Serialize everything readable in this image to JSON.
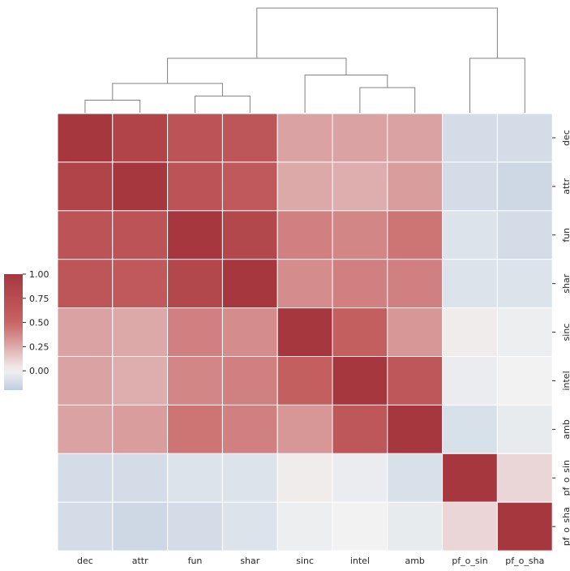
{
  "chart_data": {
    "type": "heatmap",
    "title": "",
    "xlabel": "",
    "ylabel": "",
    "labels": [
      "dec",
      "attr",
      "fun",
      "shar",
      "sinc",
      "intel",
      "amb",
      "pf_o_sin",
      "pf_o_sha"
    ],
    "matrix": [
      [
        1.0,
        0.86,
        0.68,
        0.66,
        0.28,
        0.28,
        0.28,
        -0.12,
        -0.12
      ],
      [
        0.86,
        1.0,
        0.68,
        0.62,
        0.26,
        0.24,
        0.3,
        -0.12,
        -0.14
      ],
      [
        0.68,
        0.68,
        1.0,
        0.82,
        0.4,
        0.38,
        0.44,
        -0.08,
        -0.12
      ],
      [
        0.66,
        0.62,
        0.82,
        1.0,
        0.36,
        0.4,
        0.4,
        -0.08,
        -0.08
      ],
      [
        0.28,
        0.26,
        0.4,
        0.36,
        1.0,
        0.56,
        0.32,
        0.02,
        -0.02
      ],
      [
        0.28,
        0.24,
        0.38,
        0.4,
        0.56,
        1.0,
        0.64,
        -0.03,
        0.0
      ],
      [
        0.28,
        0.3,
        0.44,
        0.4,
        0.32,
        0.64,
        1.0,
        -0.1,
        -0.04
      ],
      [
        -0.12,
        -0.12,
        -0.08,
        -0.08,
        0.02,
        -0.03,
        -0.1,
        1.0,
        0.1
      ],
      [
        -0.12,
        -0.14,
        -0.12,
        -0.08,
        -0.02,
        0.0,
        -0.04,
        0.1,
        1.0
      ]
    ],
    "colormap": "vlag",
    "color_range": [
      -0.2,
      1.0
    ],
    "colorbar": {
      "ticks": [
        1.0,
        0.75,
        0.5,
        0.25,
        0.0
      ],
      "tick_labels": [
        "1.00",
        "0.75",
        "0.50",
        "0.25",
        "0.00"
      ]
    },
    "row_labels_position": "right",
    "col_labels_position": "bottom",
    "dendrogram": "top",
    "dendrogram_heights": {
      "dec+attr": 0.03,
      "fun+shar": 0.04,
      "pair_merge": 0.07,
      "intel+amb": 0.06,
      "sinc_merge": 0.09,
      "left_cluster": 0.13,
      "pf_pair": 0.13,
      "root": 0.25
    },
    "grid": false,
    "legend": "colorbar-left"
  }
}
